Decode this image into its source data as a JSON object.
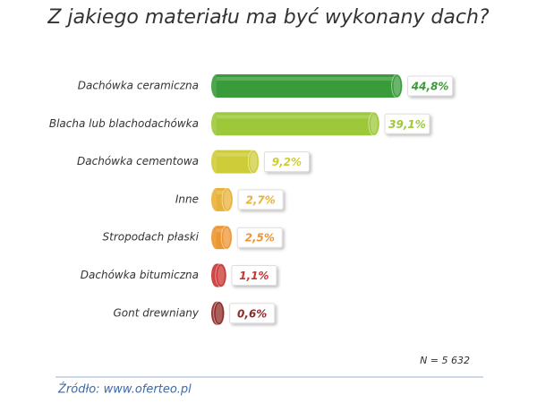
{
  "chart_data": {
    "type": "cylinder-bar",
    "orientation": "horizontal",
    "title": "Z jakiego materiału ma być wykonany dach?",
    "categories": [
      "Dachówka ceramiczna",
      "Blacha lub blachodachówka",
      "Dachówka cementowa",
      "Inne",
      "Stropodach płaski",
      "Dachówka bitumiczna",
      "Gont drewniany"
    ],
    "values": [
      44.8,
      39.1,
      9.2,
      2.7,
      2.5,
      1.1,
      0.6
    ],
    "value_labels": [
      "44,8%",
      "39,1%",
      "9,2%",
      "2,7%",
      "2,5%",
      "1,1%",
      "0,6%"
    ],
    "colors": [
      "#3a9b3a",
      "#9cc83a",
      "#cfcc3a",
      "#e8b23a",
      "#ec9632",
      "#c83432",
      "#8e2a26"
    ],
    "note": "N = 5 632",
    "source": "Źródło: www.oferteo.pl"
  }
}
